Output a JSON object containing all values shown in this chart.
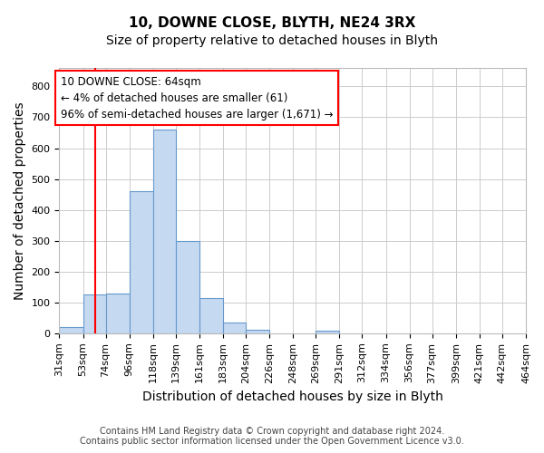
{
  "title": "10, DOWNE CLOSE, BLYTH, NE24 3RX",
  "subtitle": "Size of property relative to detached houses in Blyth",
  "xlabel": "Distribution of detached houses by size in Blyth",
  "ylabel": "Number of detached properties",
  "footnote": "Contains HM Land Registry data © Crown copyright and database right 2024.\nContains public sector information licensed under the Open Government Licence v3.0.",
  "bar_edges": [
    31,
    53,
    74,
    96,
    118,
    139,
    161,
    183,
    204,
    226,
    248,
    269,
    291,
    312,
    334,
    356,
    377,
    399,
    421,
    442,
    464
  ],
  "bar_heights": [
    20,
    125,
    130,
    460,
    660,
    300,
    115,
    35,
    12,
    0,
    0,
    8,
    0,
    0,
    0,
    0,
    0,
    0,
    0,
    0,
    0
  ],
  "bar_color": "#c5d9f1",
  "bar_edgecolor": "#6699cc",
  "property_line_x": 64,
  "property_line_color": "red",
  "annotation_text": "10 DOWNE CLOSE: 64sqm\n← 4% of detached houses are smaller (61)\n96% of semi-detached houses are larger (1,671) →",
  "annotation_box_color": "white",
  "annotation_box_edgecolor": "red",
  "ylim": [
    0,
    860
  ],
  "yticks": [
    0,
    100,
    200,
    300,
    400,
    500,
    600,
    700,
    800
  ],
  "tick_labels": [
    "31sqm",
    "53sqm",
    "74sqm",
    "96sqm",
    "118sqm",
    "139sqm",
    "161sqm",
    "183sqm",
    "204sqm",
    "226sqm",
    "248sqm",
    "269sqm",
    "291sqm",
    "312sqm",
    "334sqm",
    "356sqm",
    "377sqm",
    "399sqm",
    "421sqm",
    "442sqm",
    "464sqm"
  ],
  "grid_color": "#cccccc",
  "title_fontsize": 11,
  "subtitle_fontsize": 10,
  "axis_label_fontsize": 10,
  "tick_fontsize": 8,
  "footnote_fontsize": 7,
  "annotation_fontsize": 8.5
}
